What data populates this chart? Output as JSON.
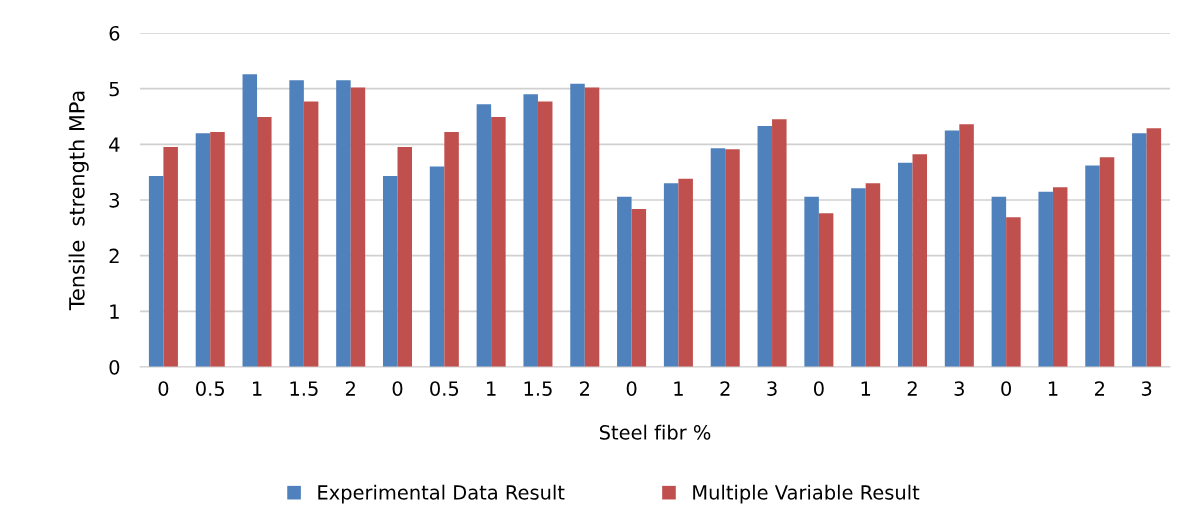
{
  "chart_data": {
    "type": "bar",
    "xlabel": "Steel fibr %",
    "ylabel": "Tensile  strength MPa",
    "categories": [
      "0",
      "0.5",
      "1",
      "1.5",
      "2",
      "0",
      "0.5",
      "1",
      "1.5",
      "2",
      "0",
      "1",
      "2",
      "3",
      "0",
      "1",
      "2",
      "3",
      "0",
      "1",
      "2",
      "3"
    ],
    "series": [
      {
        "name": "Experimental Data Result",
        "color": "#4f81bd",
        "values": [
          3.43,
          4.2,
          5.26,
          5.15,
          5.15,
          3.43,
          3.6,
          4.72,
          4.9,
          5.09,
          3.06,
          3.3,
          3.93,
          4.33,
          3.06,
          3.21,
          3.67,
          4.25,
          3.06,
          3.15,
          3.62,
          4.2
        ]
      },
      {
        "name": "Multiple Variable Result",
        "color": "#c0504d",
        "values": [
          3.95,
          4.22,
          4.49,
          4.77,
          5.02,
          3.95,
          4.22,
          4.49,
          4.77,
          5.02,
          2.84,
          3.38,
          3.91,
          4.45,
          2.76,
          3.3,
          3.82,
          4.36,
          2.69,
          3.23,
          3.77,
          4.29
        ]
      }
    ],
    "ylim": [
      0,
      6
    ],
    "yticks": [
      0,
      1,
      2,
      3,
      4,
      5,
      6
    ],
    "grid": "y",
    "legend": "bottom"
  }
}
